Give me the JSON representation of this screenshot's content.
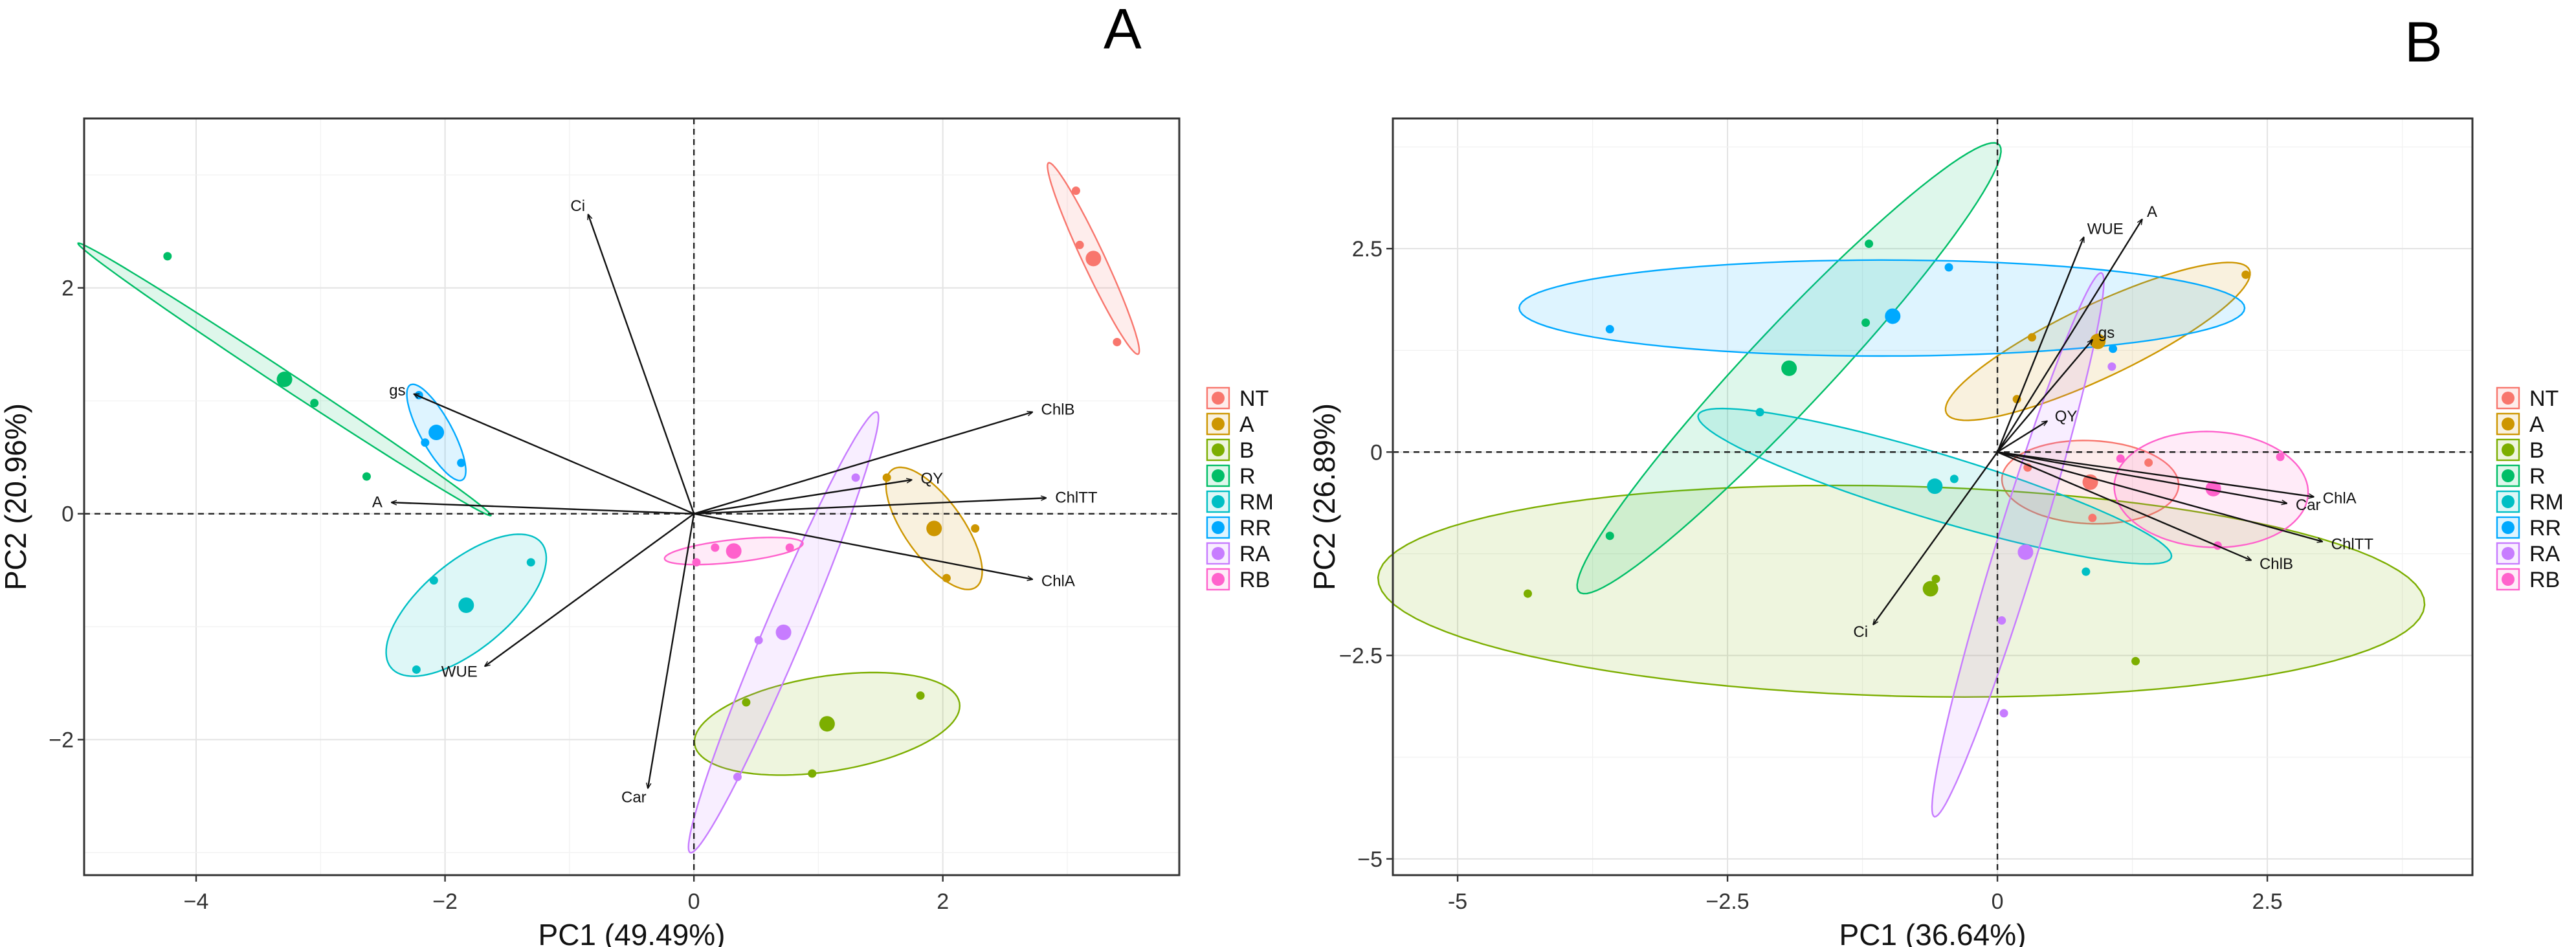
{
  "chart_data": [
    {
      "panel": "A",
      "type": "scatter",
      "subtype": "PCA biplot",
      "xlabel": "PC1 (49.49%)",
      "ylabel": "PC2 (20.96%)",
      "xlim": [
        -4.9,
        3.9
      ],
      "ylim": [
        -3.2,
        3.5
      ],
      "xticks": [
        -4,
        -2,
        0,
        2
      ],
      "yticks": [
        -2,
        0,
        2
      ],
      "grid": true,
      "reference_lines": {
        "x": 0,
        "y": 0
      },
      "legend_position": "right",
      "groups": [
        {
          "name": "NT",
          "color": "#F8766D",
          "mean": [
            3.21,
            2.26
          ],
          "points": [
            [
              3.07,
              2.86
            ],
            [
              3.1,
              2.38
            ],
            [
              3.4,
              1.52
            ]
          ],
          "ellipse": {
            "center": [
              3.21,
              2.26
            ],
            "rx": 0.92,
            "ry": 0.09,
            "angle": -67
          }
        },
        {
          "name": "A",
          "color": "#CD9600",
          "mean": [
            1.93,
            -0.13
          ],
          "points": [
            [
              1.55,
              0.32
            ],
            [
              2.03,
              -0.57
            ],
            [
              2.26,
              -0.13
            ]
          ],
          "ellipse": {
            "center": [
              1.93,
              -0.13
            ],
            "rx": 0.62,
            "ry": 0.24,
            "angle": -58
          }
        },
        {
          "name": "B",
          "color": "#7CAE00",
          "mean": [
            1.07,
            -1.86
          ],
          "points": [
            [
              0.42,
              -1.67
            ],
            [
              0.95,
              -2.3
            ],
            [
              1.82,
              -1.61
            ]
          ],
          "ellipse": {
            "center": [
              1.07,
              -1.86
            ],
            "rx": 1.08,
            "ry": 0.42,
            "angle": 10
          }
        },
        {
          "name": "R",
          "color": "#00BE67",
          "mean": [
            -3.29,
            1.19
          ],
          "points": [
            [
              -4.23,
              2.28
            ],
            [
              -3.05,
              0.98
            ],
            [
              -2.63,
              0.33
            ]
          ],
          "ellipse": {
            "center": [
              -3.29,
              1.19
            ],
            "rx": 2.05,
            "ry": 0.07,
            "angle": -36
          }
        },
        {
          "name": "RM",
          "color": "#00BFC4",
          "mean": [
            -1.83,
            -0.81
          ],
          "points": [
            [
              -2.09,
              -0.59
            ],
            [
              -2.23,
              -1.38
            ],
            [
              -1.31,
              -0.43
            ]
          ],
          "ellipse": {
            "center": [
              -1.83,
              -0.81
            ],
            "rx": 0.82,
            "ry": 0.37,
            "angle": 44
          }
        },
        {
          "name": "RR",
          "color": "#00A9FF",
          "mean": [
            -2.07,
            0.72
          ],
          "points": [
            [
              -2.21,
              1.05
            ],
            [
              -2.16,
              0.63
            ],
            [
              -1.87,
              0.45
            ]
          ],
          "ellipse": {
            "center": [
              -2.07,
              0.72
            ],
            "rx": 0.47,
            "ry": 0.13,
            "angle": -64
          }
        },
        {
          "name": "RA",
          "color": "#C77CFF",
          "mean": [
            0.72,
            -1.05
          ],
          "points": [
            [
              1.3,
              0.32
            ],
            [
              0.52,
              -1.12
            ],
            [
              0.35,
              -2.33
            ]
          ],
          "ellipse": {
            "center": [
              0.72,
              -1.05
            ],
            "rx": 2.09,
            "ry": 0.16,
            "angle": 69
          }
        },
        {
          "name": "RB",
          "color": "#FF61CC",
          "mean": [
            0.32,
            -0.33
          ],
          "points": [
            [
              0.17,
              -0.3
            ],
            [
              0.77,
              -0.3
            ],
            [
              0.02,
              -0.43
            ]
          ],
          "ellipse": {
            "center": [
              0.32,
              -0.33
            ],
            "rx": 0.56,
            "ry": 0.1,
            "angle": 7
          }
        }
      ],
      "variables": [
        {
          "name": "Ci",
          "end": [
            -0.85,
            2.65
          ]
        },
        {
          "name": "ChlB",
          "end": [
            2.72,
            0.9
          ]
        },
        {
          "name": "ChlTT",
          "end": [
            2.83,
            0.14
          ]
        },
        {
          "name": "ChlA",
          "end": [
            2.72,
            -0.58
          ]
        },
        {
          "name": "QY",
          "end": [
            1.75,
            0.3
          ]
        },
        {
          "name": "gs",
          "end": [
            -2.25,
            1.06
          ]
        },
        {
          "name": "A",
          "end": [
            -2.43,
            0.1
          ]
        },
        {
          "name": "WUE",
          "end": [
            -1.68,
            -1.35
          ]
        },
        {
          "name": "Car",
          "end": [
            -0.37,
            -2.43
          ]
        }
      ]
    },
    {
      "panel": "B",
      "type": "scatter",
      "subtype": "PCA biplot",
      "xlabel": "PC1 (36.64%)",
      "ylabel": "PC2 (26.89%)",
      "xlim": [
        -5.6,
        4.4
      ],
      "ylim": [
        -5.2,
        4.1
      ],
      "xticks": [
        -5,
        -2.5,
        0,
        2.5
      ],
      "xtick_labels": [
        "-5",
        "−2.5",
        "0",
        "2.5"
      ],
      "yticks": [
        -5,
        -2.5,
        0,
        2.5
      ],
      "ytick_labels": [
        "−5",
        "−2.5",
        "0",
        "2.5"
      ],
      "grid": true,
      "reference_lines": {
        "x": 0,
        "y": 0
      },
      "legend_position": "right",
      "groups": [
        {
          "name": "NT",
          "color": "#F8766D",
          "mean": [
            0.86,
            -0.37
          ],
          "points": [
            [
              0.28,
              -0.19
            ],
            [
              0.88,
              -0.81
            ],
            [
              1.4,
              -0.13
            ]
          ],
          "ellipse": {
            "center": [
              0.86,
              -0.37
            ],
            "rx": 0.82,
            "ry": 0.51,
            "angle": -4
          }
        },
        {
          "name": "A",
          "color": "#CD9600",
          "mean": [
            0.93,
            1.36
          ],
          "points": [
            [
              0.18,
              0.65
            ],
            [
              0.32,
              1.41
            ],
            [
              2.3,
              2.18
            ]
          ],
          "ellipse": {
            "center": [
              0.93,
              1.36
            ],
            "rx": 1.66,
            "ry": 0.42,
            "angle": 33
          }
        },
        {
          "name": "B",
          "color": "#7CAE00",
          "mean": [
            -0.62,
            -1.68
          ],
          "points": [
            [
              -4.35,
              -1.74
            ],
            [
              -0.57,
              -1.56
            ],
            [
              1.28,
              -2.57
            ]
          ],
          "ellipse": {
            "center": [
              -0.89,
              -1.71
            ],
            "rx": 4.85,
            "ry": 1.29,
            "angle": -2
          }
        },
        {
          "name": "R",
          "color": "#00BE67",
          "mean": [
            -1.93,
            1.03
          ],
          "points": [
            [
              -3.59,
              -1.03
            ],
            [
              -1.19,
              2.56
            ],
            [
              -1.22,
              1.59
            ]
          ],
          "ellipse": {
            "center": [
              -1.93,
              1.03
            ],
            "rx": 3.37,
            "ry": 0.42,
            "angle": 55
          }
        },
        {
          "name": "RM",
          "color": "#00BFC4",
          "mean": [
            -0.58,
            -0.42
          ],
          "points": [
            [
              -2.2,
              0.49
            ],
            [
              -0.4,
              -0.33
            ],
            [
              0.82,
              -1.47
            ]
          ],
          "ellipse": {
            "center": [
              -0.58,
              -0.42
            ],
            "rx": 2.36,
            "ry": 0.39,
            "angle": -22
          }
        },
        {
          "name": "RR",
          "color": "#00A9FF",
          "mean": [
            -0.97,
            1.67
          ],
          "points": [
            [
              -3.59,
              1.51
            ],
            [
              -0.45,
              2.27
            ],
            [
              1.07,
              1.27
            ]
          ],
          "ellipse": {
            "center": [
              -1.07,
              1.77
            ],
            "rx": 3.36,
            "ry": 0.59,
            "angle": 0
          }
        },
        {
          "name": "RA",
          "color": "#C77CFF",
          "mean": [
            0.26,
            -1.23
          ],
          "points": [
            [
              0.04,
              -2.07
            ],
            [
              0.06,
              -3.21
            ],
            [
              1.06,
              1.05
            ]
          ],
          "ellipse": {
            "center": [
              0.19,
              -1.14
            ],
            "rx": 3.43,
            "ry": 0.2,
            "angle": 77
          }
        },
        {
          "name": "RB",
          "color": "#FF61CC",
          "mean": [
            2.0,
            -0.45
          ],
          "points": [
            [
              1.14,
              -0.08
            ],
            [
              2.04,
              -1.15
            ],
            [
              2.62,
              -0.06
            ]
          ],
          "ellipse": {
            "center": [
              1.98,
              -0.46
            ],
            "rx": 0.9,
            "ry": 0.71,
            "angle": -6
          }
        }
      ],
      "variables": [
        {
          "name": "A",
          "end": [
            1.34,
            2.86
          ]
        },
        {
          "name": "WUE",
          "end": [
            0.8,
            2.64
          ]
        },
        {
          "name": "gs",
          "end": [
            0.88,
            1.38
          ]
        },
        {
          "name": "QY",
          "end": [
            0.46,
            0.38
          ]
        },
        {
          "name": "ChlA",
          "end": [
            2.93,
            -0.55
          ]
        },
        {
          "name": "Car",
          "end": [
            2.68,
            -0.63
          ]
        },
        {
          "name": "ChlTT",
          "end": [
            3.01,
            -1.1
          ]
        },
        {
          "name": "ChlB",
          "end": [
            2.35,
            -1.33
          ]
        },
        {
          "name": "Ci",
          "end": [
            -1.15,
            -2.12
          ]
        }
      ]
    }
  ]
}
